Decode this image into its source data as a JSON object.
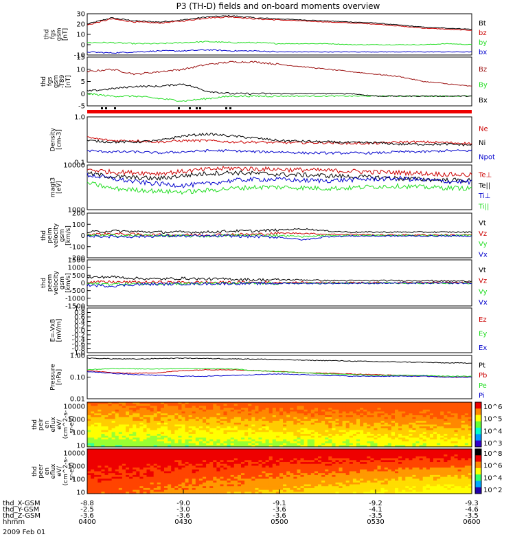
{
  "chart_data": {
    "type": "line",
    "title": "P3 (TH-D) fields and on-board moments overview",
    "colors": {
      "black": "#000000",
      "red": "#cc0000",
      "green": "#22dd22",
      "blue": "#0000cc",
      "dkred": "#9b1010"
    },
    "panels": [
      {
        "id": "fgs",
        "ylabel": [
          "thd",
          "fgs",
          "gsm",
          "[nT]"
        ],
        "ylim": [
          -10,
          30
        ],
        "log": false,
        "yticks": [
          "30",
          "20",
          "10",
          "0",
          "-10"
        ],
        "series": [
          {
            "name": "Bt",
            "color": "black",
            "values": [
              20,
              26,
              23,
              22,
              24,
              27,
              28,
              26,
              25,
              24,
              23,
              22,
              21,
              19,
              17,
              16,
              15
            ]
          },
          {
            "name": "bz",
            "color": "red",
            "values": [
              19,
              25,
              22,
              21,
              23,
              26,
              27,
              25,
              24,
              23,
              22,
              21,
              20,
              18,
              16,
              15,
              14
            ]
          },
          {
            "name": "by",
            "color": "green",
            "values": [
              2,
              2,
              1,
              1,
              2,
              3,
              2,
              2,
              1,
              1,
              1,
              0,
              0,
              0,
              0,
              1,
              0
            ]
          },
          {
            "name": "bx",
            "color": "blue",
            "values": [
              -7,
              -8,
              -7,
              -6,
              -6,
              -5,
              -6,
              -6,
              -7,
              -7,
              -7,
              -7,
              -7,
              -7,
              -7,
              -7,
              -7
            ]
          }
        ]
      },
      {
        "id": "t89",
        "ylabel": [
          "thd",
          "fgs",
          "gsm",
          "-T89",
          "[nT]"
        ],
        "ylim": [
          -5,
          15
        ],
        "log": false,
        "yticks": [
          "15",
          "10",
          "5",
          "0",
          "-5"
        ],
        "series": [
          {
            "name": "Bz",
            "color": "dkred",
            "values": [
              9,
              10,
              8,
              9,
              10,
              12,
              13,
              13,
              12,
              11,
              10,
              9,
              8,
              7,
              5,
              4,
              3
            ]
          },
          {
            "name": "By",
            "color": "green",
            "values": [
              0,
              -1,
              -1,
              -2,
              -3,
              -2,
              -1,
              -1,
              -1,
              -1,
              -1,
              -1,
              -1,
              -1,
              -1,
              -1,
              -1
            ]
          },
          {
            "name": "Bx",
            "color": "black",
            "values": [
              1,
              2,
              3,
              3,
              4,
              1,
              0,
              0,
              0,
              0,
              0,
              0,
              -1,
              -1,
              -1,
              -1,
              -1
            ]
          }
        ]
      },
      {
        "id": "density",
        "ylabel": [
          "Density",
          "[cm-3]"
        ],
        "ylim": [
          0.1,
          1.0
        ],
        "log": true,
        "yticks": [
          "1.0",
          "0.1"
        ],
        "series": [
          {
            "name": "Ne",
            "color": "red",
            "values": [
              0.35,
              0.3,
              0.3,
              0.28,
              0.3,
              0.3,
              0.28,
              0.28,
              0.27,
              0.27,
              0.27,
              0.26,
              0.26,
              0.28,
              0.28,
              0.27,
              0.26
            ]
          },
          {
            "name": "Ni",
            "color": "black",
            "values": [
              0.3,
              0.28,
              0.28,
              0.3,
              0.38,
              0.42,
              0.38,
              0.34,
              0.3,
              0.29,
              0.28,
              0.27,
              0.27,
              0.25,
              0.25,
              0.25,
              0.24
            ]
          },
          {
            "name": "Npot",
            "color": "blue",
            "values": [
              0.18,
              0.17,
              0.17,
              0.16,
              0.17,
              0.18,
              0.18,
              0.17,
              0.17,
              0.16,
              0.16,
              0.16,
              0.16,
              0.17,
              0.17,
              0.18,
              0.18
            ]
          }
        ]
      },
      {
        "id": "temp",
        "ylabel": [
          "magt3",
          "[eV]"
        ],
        "ylim": [
          1000,
          10000
        ],
        "log": true,
        "yticks": [
          "10000",
          "1000"
        ],
        "series": [
          {
            "name": "Te⊥",
            "color": "red",
            "values": [
              8000,
              7000,
              6800,
              6500,
              7200,
              8000,
              8500,
              8200,
              8000,
              7800,
              7500,
              7300,
              7000,
              6800,
              6500,
              6200,
              6000
            ]
          },
          {
            "name": "Te||",
            "color": "black",
            "values": [
              6500,
              5500,
              5200,
              5000,
              5800,
              6500,
              6800,
              6500,
              6200,
              6000,
              5800,
              5500,
              5300,
              5000,
              4800,
              4600,
              4500
            ]
          },
          {
            "name": "Ti⊥",
            "color": "blue",
            "values": [
              6000,
              5000,
              4200,
              3800,
              3500,
              3800,
              4500,
              4800,
              4800,
              4500,
              4500,
              4700,
              4900,
              5000,
              4600,
              4300,
              4200
            ]
          },
          {
            "name": "Ti||",
            "color": "green",
            "values": [
              4000,
              3000,
              2800,
              2600,
              2500,
              2700,
              3000,
              3200,
              3200,
              3100,
              3000,
              3100,
              3300,
              3400,
              3200,
              3100,
              3000
            ]
          }
        ]
      },
      {
        "id": "vi",
        "ylabel": [
          "thd",
          "peim",
          "velocity",
          "gsm",
          "[km/s]"
        ],
        "ylim": [
          -200,
          200
        ],
        "log": false,
        "yticks": [
          "200",
          "100",
          "0",
          "-100",
          "-200"
        ],
        "series": [
          {
            "name": "Vt",
            "color": "black",
            "values": [
              30,
              40,
              35,
              30,
              30,
              30,
              40,
              40,
              50,
              60,
              40,
              30,
              30,
              30,
              30,
              30,
              30
            ]
          },
          {
            "name": "Vz",
            "color": "red",
            "values": [
              10,
              15,
              10,
              5,
              5,
              5,
              10,
              10,
              20,
              20,
              10,
              10,
              5,
              5,
              5,
              5,
              5
            ]
          },
          {
            "name": "Vy",
            "color": "green",
            "values": [
              0,
              0,
              0,
              0,
              -5,
              -5,
              0,
              0,
              0,
              -10,
              0,
              0,
              0,
              0,
              0,
              0,
              0
            ]
          },
          {
            "name": "Vx",
            "color": "blue",
            "values": [
              -5,
              -10,
              -10,
              -5,
              -5,
              -5,
              -5,
              -10,
              -15,
              -40,
              -10,
              -5,
              -5,
              -5,
              -5,
              -5,
              -5
            ]
          }
        ]
      },
      {
        "id": "ve",
        "ylabel": [
          "thd",
          "peem",
          "velocity",
          "gsm",
          "[km/s]"
        ],
        "ylim": [
          -1500,
          1500
        ],
        "log": false,
        "yticks": [
          "1500",
          "1000",
          "500",
          "0",
          "-500",
          "-1000",
          "-1500"
        ],
        "series": [
          {
            "name": "Vt",
            "color": "black",
            "values": [
              350,
              400,
              300,
              250,
              300,
              250,
              250,
              200,
              200,
              200,
              150,
              150,
              150,
              150,
              150,
              120,
              120
            ]
          },
          {
            "name": "Vz",
            "color": "red",
            "values": [
              50,
              60,
              50,
              40,
              40,
              30,
              30,
              30,
              30,
              30,
              20,
              20,
              20,
              20,
              20,
              20,
              20
            ]
          },
          {
            "name": "Vy",
            "color": "green",
            "values": [
              -50,
              -80,
              -60,
              -40,
              -40,
              -30,
              -30,
              -30,
              -30,
              -20,
              -20,
              -20,
              -20,
              -20,
              -20,
              -20,
              -20
            ]
          },
          {
            "name": "Vx",
            "color": "blue",
            "values": [
              -150,
              -200,
              -100,
              -80,
              -60,
              -50,
              -40,
              -40,
              -30,
              -30,
              -30,
              -20,
              -20,
              -20,
              -20,
              -20,
              -20
            ]
          }
        ]
      },
      {
        "id": "evxb",
        "ylabel": [
          "E=-VxB",
          "[mV/m]"
        ],
        "ylim": [
          -1.0,
          1.0
        ],
        "log": false,
        "yticks": [
          "1.0",
          "0.8",
          "0.6",
          "0.4",
          "0.2",
          "0.0",
          "-0.2",
          "-0.4",
          "-0.6",
          "-0.8",
          "-1.0"
        ],
        "series": [
          {
            "name": "Ez",
            "color": "red",
            "values": []
          },
          {
            "name": "Ey",
            "color": "green",
            "values": []
          },
          {
            "name": "Ex",
            "color": "blue",
            "values": []
          }
        ]
      },
      {
        "id": "pressure",
        "ylabel": [
          "Pressure",
          "[nPa]"
        ],
        "ylim": [
          0.01,
          1.0
        ],
        "log": true,
        "yticks": [
          "1.00",
          "0.10",
          "0.01"
        ],
        "series": [
          {
            "name": "Pt",
            "color": "black",
            "values": [
              0.75,
              0.7,
              0.68,
              0.72,
              0.75,
              0.72,
              0.7,
              0.68,
              0.65,
              0.6,
              0.58,
              0.55,
              0.52,
              0.5,
              0.48,
              0.45,
              0.45
            ]
          },
          {
            "name": "Pb",
            "color": "red",
            "values": [
              0.2,
              0.16,
              0.15,
              0.16,
              0.2,
              0.22,
              0.22,
              0.2,
              0.18,
              0.16,
              0.15,
              0.14,
              0.13,
              0.12,
              0.11,
              0.1,
              0.1
            ]
          },
          {
            "name": "Pe",
            "color": "green",
            "values": [
              0.22,
              0.25,
              0.24,
              0.24,
              0.25,
              0.25,
              0.24,
              0.2,
              0.18,
              0.16,
              0.14,
              0.13,
              0.12,
              0.12,
              0.12,
              0.11,
              0.11
            ]
          },
          {
            "name": "Pi",
            "color": "blue",
            "values": [
              0.18,
              0.15,
              0.13,
              0.12,
              0.11,
              0.11,
              0.12,
              0.13,
              0.14,
              0.13,
              0.12,
              0.11,
              0.11,
              0.11,
              0.11,
              0.1,
              0.1
            ]
          }
        ]
      }
    ],
    "spectrograms": [
      {
        "id": "peir",
        "ylabel": [
          "thd",
          "peir",
          "en",
          "eflux",
          "eV/",
          "(cm^2-s-",
          "sr-eV)"
        ],
        "yticks": [
          "10000",
          "1000",
          "100",
          "10"
        ],
        "cbar_ticks": [
          "10^6",
          "10^5",
          "10^4",
          "10^3"
        ]
      },
      {
        "id": "peer",
        "ylabel": [
          "thd",
          "peer",
          "en",
          "eflux",
          "eV/",
          "(cm^2-s-",
          "sr-eV)"
        ],
        "yticks": [
          "10000",
          "1000",
          "100",
          "10"
        ],
        "cbar_ticks": [
          "10^8",
          "10^6",
          "10^4",
          "10^2"
        ]
      }
    ],
    "xaxis": {
      "tick_labels": [
        "0400",
        "0430",
        "0500",
        "0530",
        "0600"
      ],
      "rows": [
        {
          "label": "thd_X-GSM",
          "values": [
            "-8.8",
            "-9.0",
            "-9.1",
            "-9.2",
            "-9.3"
          ]
        },
        {
          "label": "thd_Y-GSM",
          "values": [
            "-2.5",
            "-3.0",
            "-3.6",
            "-4.1",
            "-4.6"
          ]
        },
        {
          "label": "thd_Z-GSM",
          "values": [
            "-3.6",
            "-3.6",
            "-3.6",
            "-3.5",
            "-3.5"
          ]
        },
        {
          "label": "hhmm",
          "values": [
            "0400",
            "0430",
            "0500",
            "0530",
            "0600"
          ]
        }
      ],
      "date": "2009 Feb 01"
    }
  }
}
